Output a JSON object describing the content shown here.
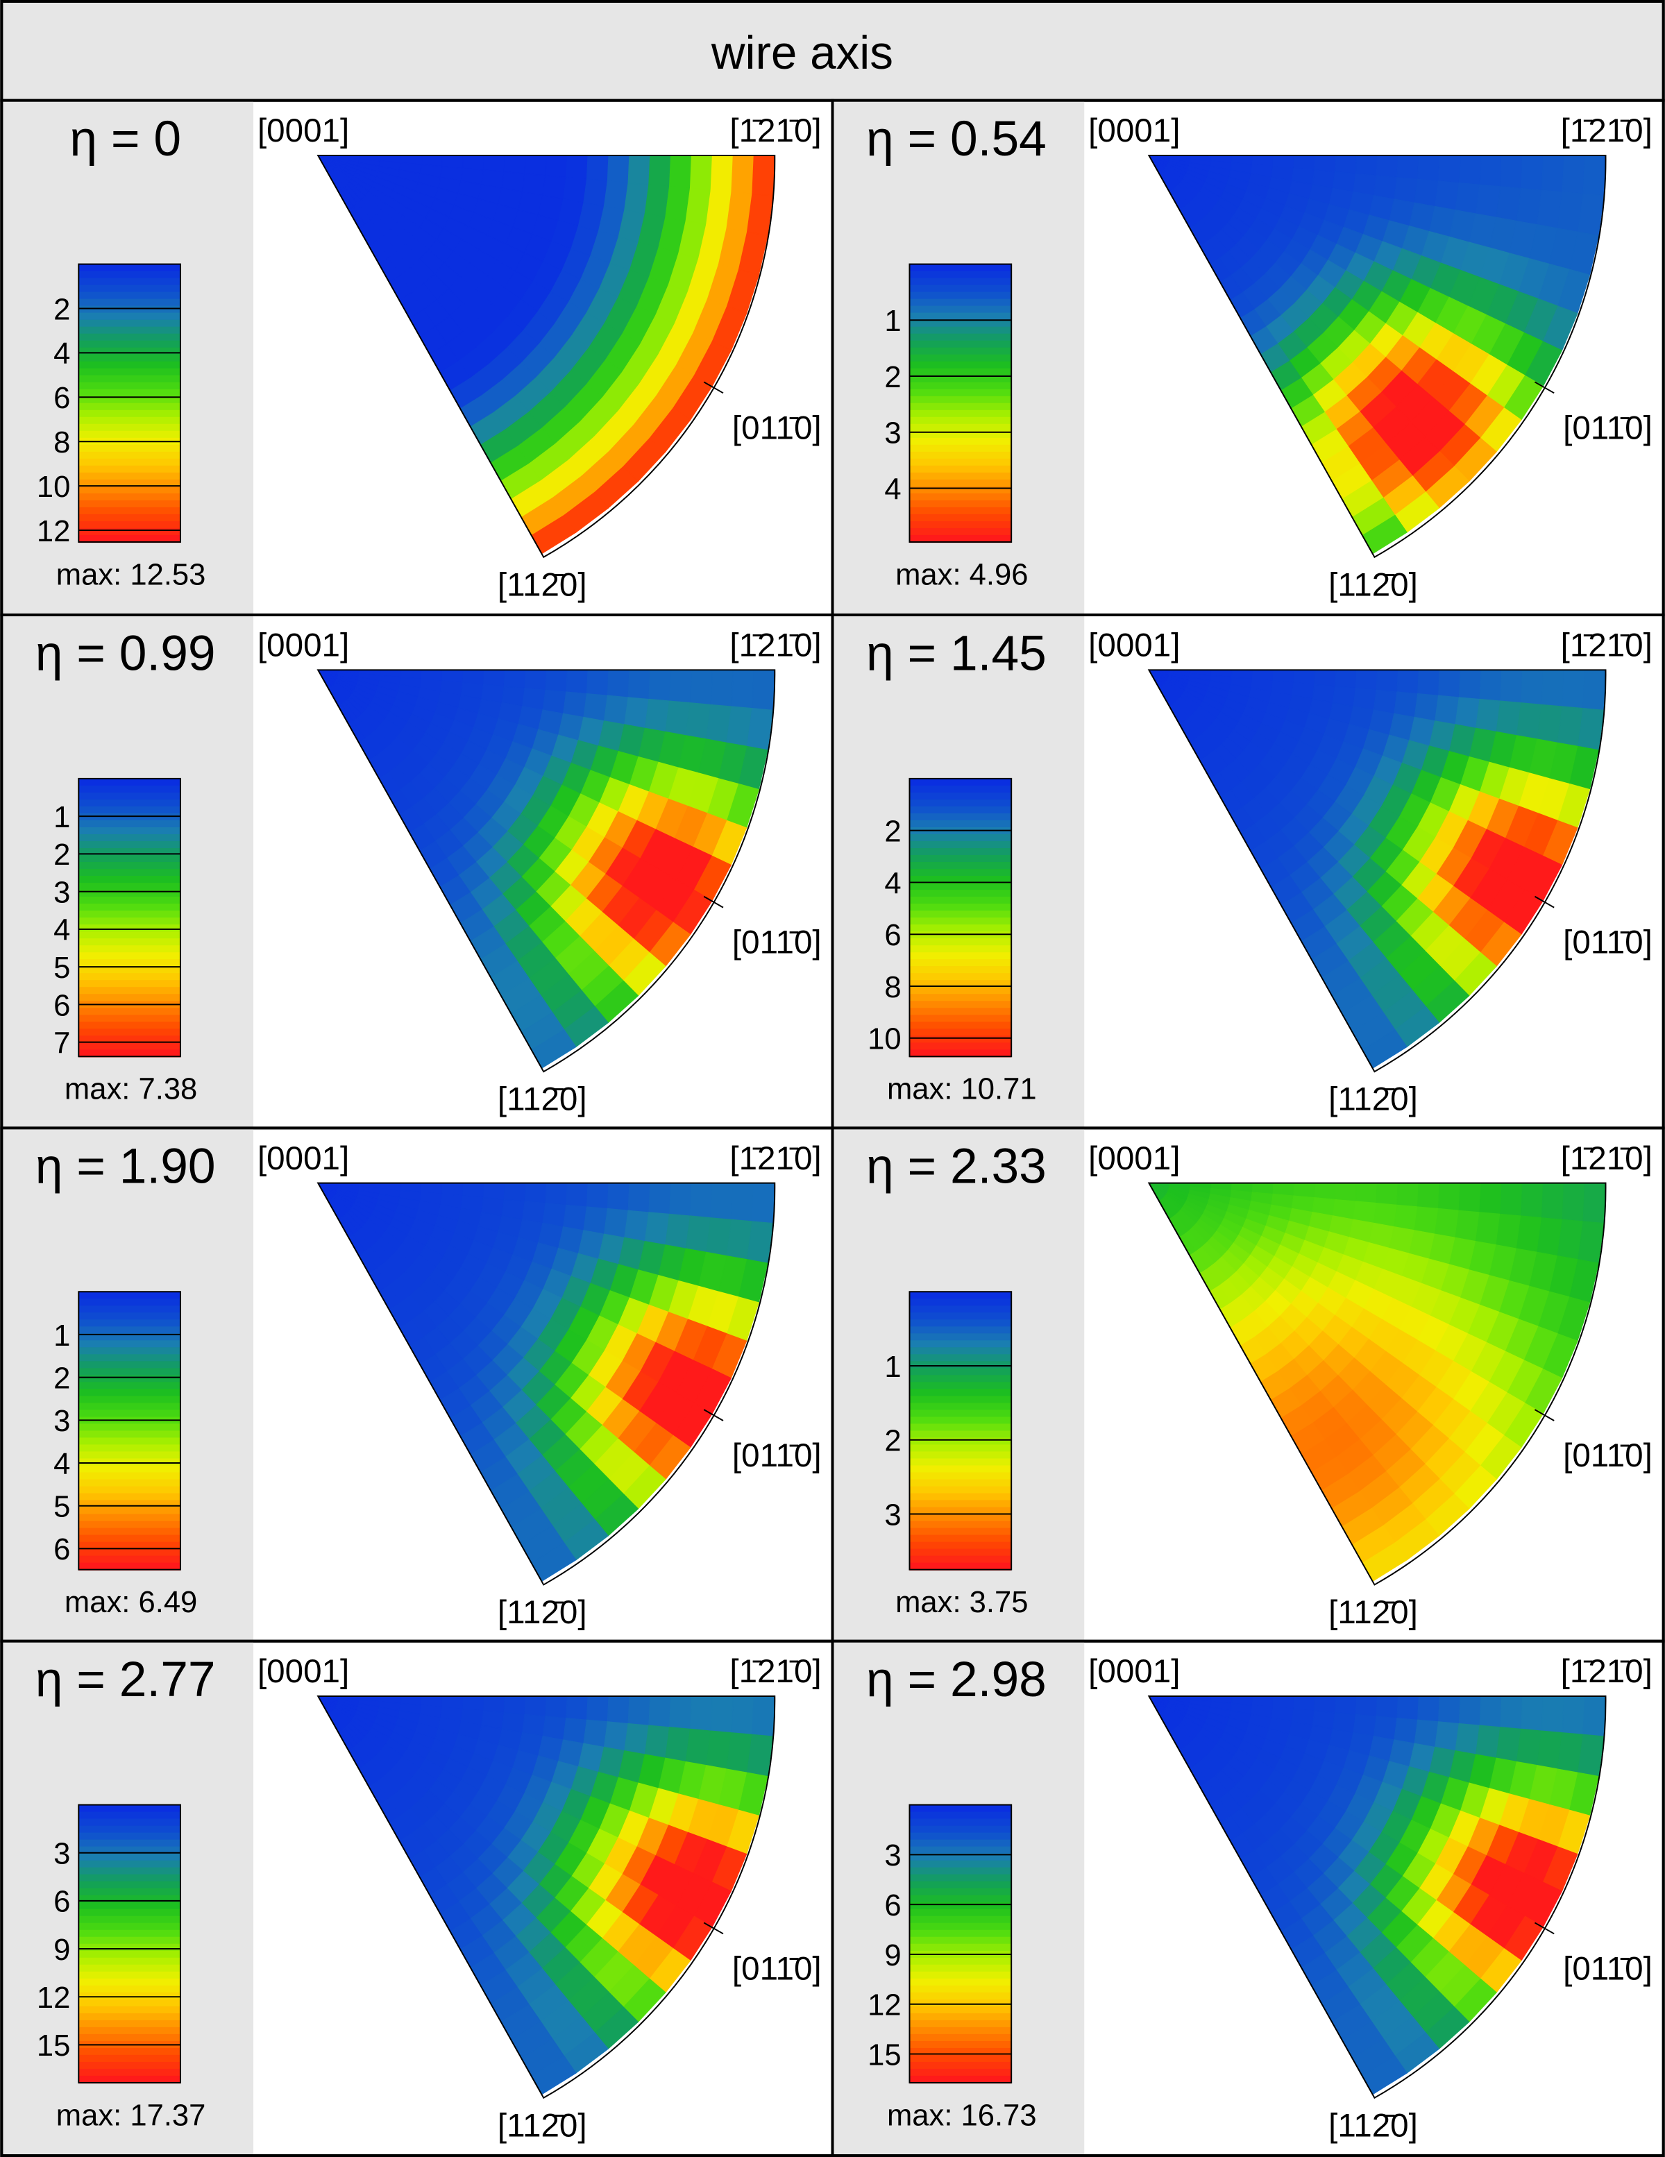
{
  "header": {
    "title": "wire axis"
  },
  "miller_labels": {
    "top_left": "[0001]",
    "top_right": "[1̄21̄0]",
    "side": "[011̄0]",
    "bottom": "[112̄0]"
  },
  "colormap": [
    "#0a2fe0",
    "#0f4fd0",
    "#1a7fb0",
    "#13a05a",
    "#1ec01e",
    "#4ddb10",
    "#a8f000",
    "#f0f000",
    "#ffc800",
    "#ff8a00",
    "#ff4a00",
    "#ff1a1a"
  ],
  "panels": [
    {
      "eta_label": "η = 0",
      "max_label": "max: 12.53",
      "max": 12.53,
      "ticks": [
        "2",
        "4",
        "6",
        "8",
        "10",
        "12"
      ],
      "tick_values": [
        2,
        4,
        6,
        8,
        10,
        12
      ],
      "hotspot": null
    },
    {
      "eta_label": "η = 0.54",
      "max_label": "max: 4.96",
      "max": 4.96,
      "ticks": [
        "1",
        "2",
        "3",
        "4"
      ],
      "tick_values": [
        1,
        2,
        3,
        4
      ],
      "hotspot": {
        "theta_deg": 45,
        "r": 0.82
      }
    },
    {
      "eta_label": "η = 0.99",
      "max_label": "max: 7.38",
      "max": 7.38,
      "ticks": [
        "1",
        "2",
        "3",
        "4",
        "5",
        "6",
        "7"
      ],
      "tick_values": [
        1,
        2,
        3,
        4,
        5,
        6,
        7
      ],
      "hotspot": {
        "theta_deg": 32,
        "r": 0.88
      }
    },
    {
      "eta_label": "η = 1.45",
      "max_label": "max: 10.71",
      "max": 10.71,
      "ticks": [
        "2",
        "4",
        "6",
        "8",
        "10"
      ],
      "tick_values": [
        2,
        4,
        6,
        8,
        10
      ],
      "hotspot": {
        "theta_deg": 30,
        "r": 0.92
      }
    },
    {
      "eta_label": "η = 1.90",
      "max_label": "max: 6.49",
      "max": 6.49,
      "ticks": [
        "1",
        "2",
        "3",
        "4",
        "5",
        "6"
      ],
      "tick_values": [
        1,
        2,
        3,
        4,
        5,
        6
      ],
      "hotspot": {
        "theta_deg": 30,
        "r": 0.93
      }
    },
    {
      "eta_label": "η = 2.33",
      "max_label": "max: 3.75",
      "max": 3.75,
      "ticks": [
        "1",
        "2",
        "3"
      ],
      "tick_values": [
        1,
        2,
        3
      ],
      "hotspot": {
        "theta_deg": 55,
        "r": 0.7
      }
    },
    {
      "eta_label": "η = 2.77",
      "max_label": "max: 17.37",
      "max": 17.37,
      "ticks": [
        "3",
        "6",
        "9",
        "12",
        "15"
      ],
      "tick_values": [
        3,
        6,
        9,
        12,
        15
      ],
      "hotspot": {
        "theta_deg": 28,
        "r": 0.92
      }
    },
    {
      "eta_label": "η = 2.98",
      "max_label": "max: 16.73",
      "max": 16.73,
      "ticks": [
        "3",
        "6",
        "9",
        "12",
        "15"
      ],
      "tick_values": [
        3,
        6,
        9,
        12,
        15
      ],
      "hotspot": {
        "theta_deg": 28,
        "r": 0.92
      }
    }
  ]
}
